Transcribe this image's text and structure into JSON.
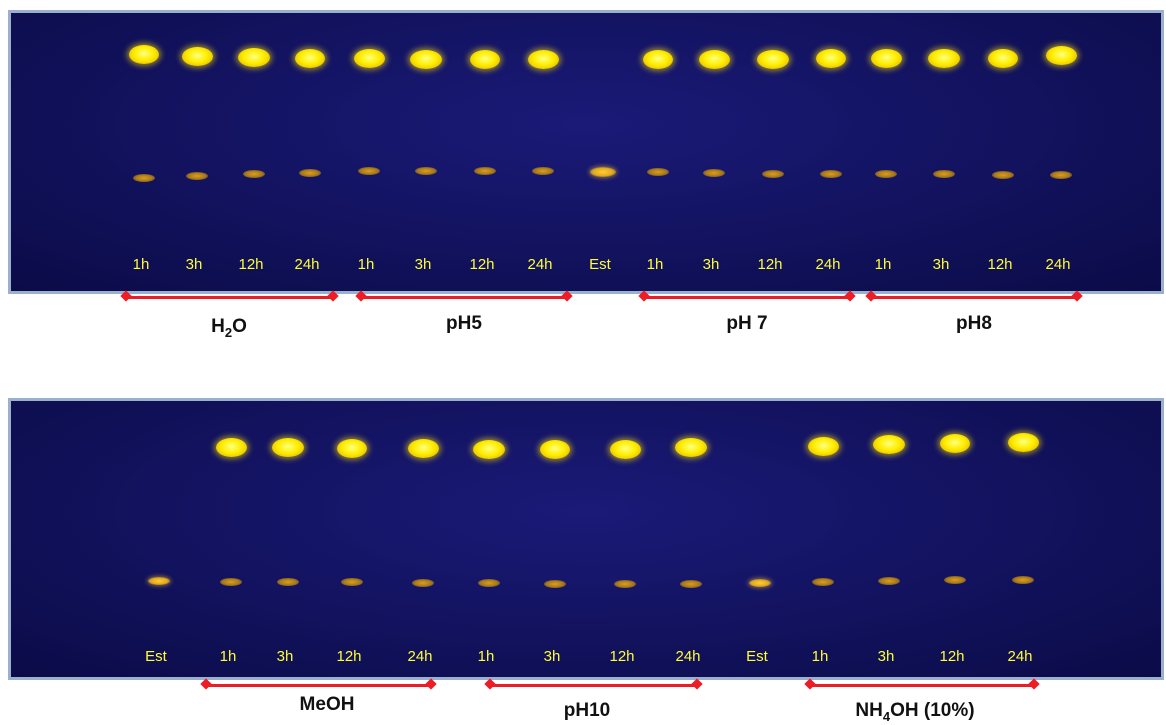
{
  "top_plate": {
    "lane_labels": [
      "1h",
      "3h",
      "12h",
      "24h",
      "1h",
      "3h",
      "12h",
      "24h",
      "Est",
      "1h",
      "3h",
      "12h",
      "24h",
      "1h",
      "3h",
      "12h",
      "24h"
    ],
    "groups": [
      {
        "label": "H",
        "sub": "2",
        "suffix": "O"
      },
      {
        "label": "pH5"
      },
      {
        "label": "pH 7"
      },
      {
        "label": "pH8"
      }
    ]
  },
  "bottom_plate": {
    "lane_labels": [
      "Est",
      "1h",
      "3h",
      "12h",
      "24h",
      "1h",
      "3h",
      "12h",
      "24h",
      "Est",
      "1h",
      "3h",
      "12h",
      "24h"
    ],
    "groups": [
      {
        "label": "MeOH"
      },
      {
        "label": "pH10"
      },
      {
        "label": "NH",
        "sub": "4",
        "suffix": "OH (10%)"
      }
    ]
  },
  "colors": {
    "plate_background": "#12125e",
    "spot": "#ffee00",
    "label_text": "#ffff33",
    "bracket": "#ee1c25"
  }
}
